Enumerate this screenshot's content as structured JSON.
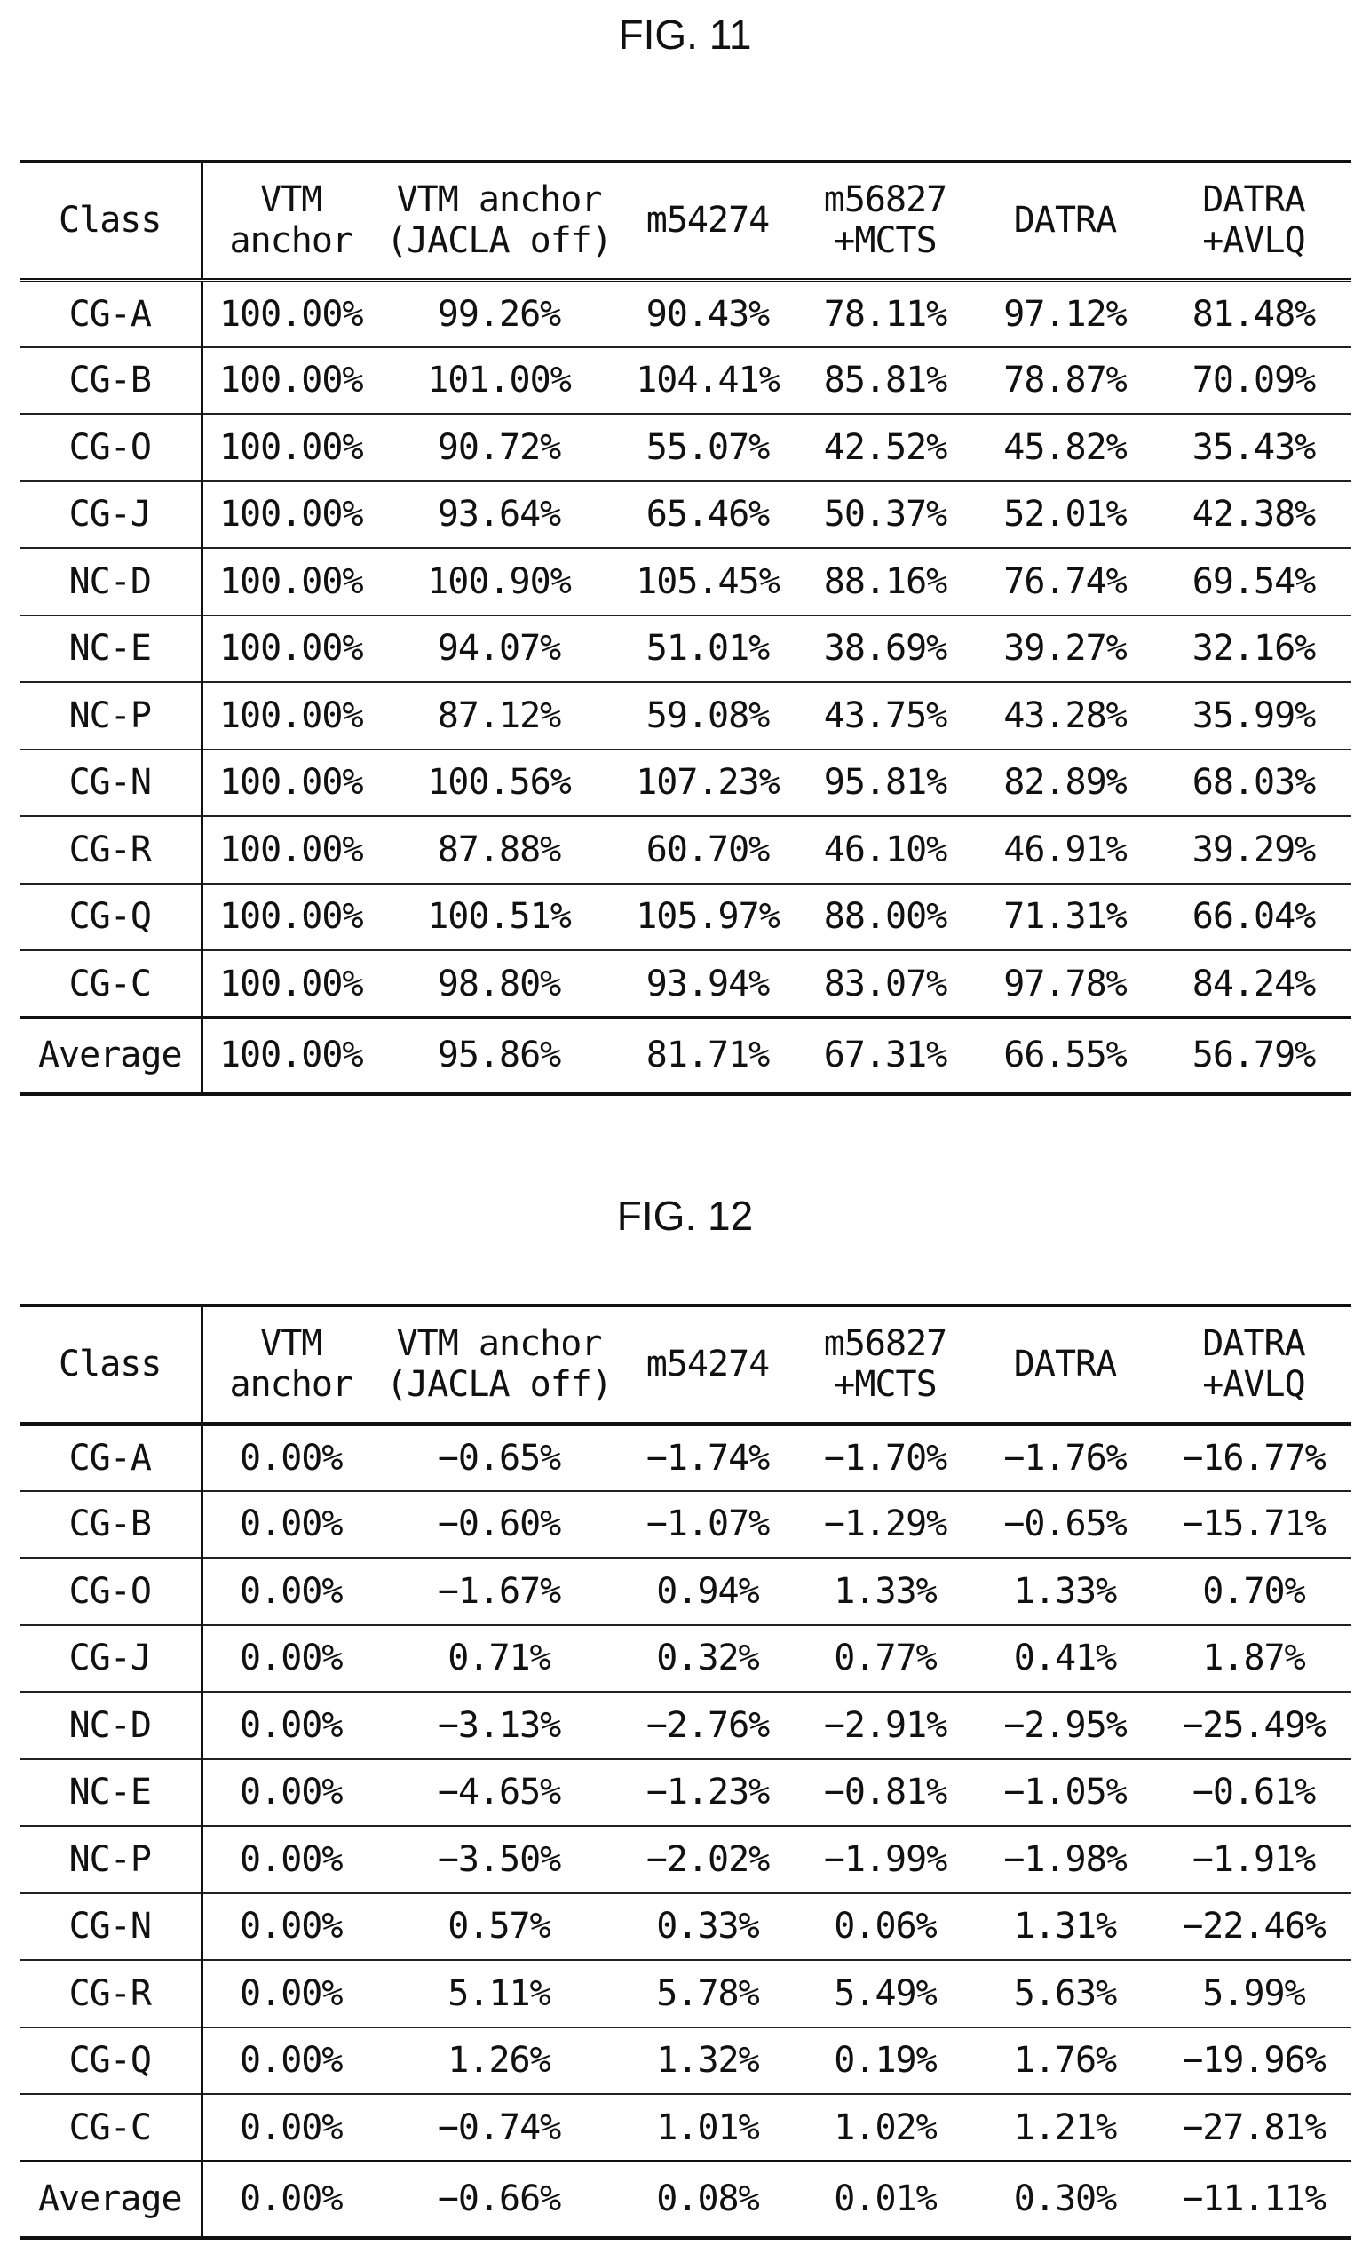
{
  "fig11": {
    "title": "FIG. 11",
    "headers": [
      [
        "Class"
      ],
      [
        "VTM",
        "anchor"
      ],
      [
        "VTM anchor",
        "(JACLA off)"
      ],
      [
        "m54274"
      ],
      [
        "m56827",
        "+MCTS"
      ],
      [
        "DATRA"
      ],
      [
        "DATRA",
        "+AVLQ"
      ]
    ],
    "rows": [
      [
        "CG-A",
        "100.00%",
        "99.26%",
        "90.43%",
        "78.11%",
        "97.12%",
        "81.48%"
      ],
      [
        "CG-B",
        "100.00%",
        "101.00%",
        "104.41%",
        "85.81%",
        "78.87%",
        "70.09%"
      ],
      [
        "CG-O",
        "100.00%",
        "90.72%",
        "55.07%",
        "42.52%",
        "45.82%",
        "35.43%"
      ],
      [
        "CG-J",
        "100.00%",
        "93.64%",
        "65.46%",
        "50.37%",
        "52.01%",
        "42.38%"
      ],
      [
        "NC-D",
        "100.00%",
        "100.90%",
        "105.45%",
        "88.16%",
        "76.74%",
        "69.54%"
      ],
      [
        "NC-E",
        "100.00%",
        "94.07%",
        "51.01%",
        "38.69%",
        "39.27%",
        "32.16%"
      ],
      [
        "NC-P",
        "100.00%",
        "87.12%",
        "59.08%",
        "43.75%",
        "43.28%",
        "35.99%"
      ],
      [
        "CG-N",
        "100.00%",
        "100.56%",
        "107.23%",
        "95.81%",
        "82.89%",
        "68.03%"
      ],
      [
        "CG-R",
        "100.00%",
        "87.88%",
        "60.70%",
        "46.10%",
        "46.91%",
        "39.29%"
      ],
      [
        "CG-Q",
        "100.00%",
        "100.51%",
        "105.97%",
        "88.00%",
        "71.31%",
        "66.04%"
      ],
      [
        "CG-C",
        "100.00%",
        "98.80%",
        "93.94%",
        "83.07%",
        "97.78%",
        "84.24%"
      ]
    ],
    "average": [
      "Average",
      "100.00%",
      "95.86%",
      "81.71%",
      "67.31%",
      "66.55%",
      "56.79%"
    ]
  },
  "fig12": {
    "title": "FIG. 12",
    "headers": [
      [
        "Class"
      ],
      [
        "VTM",
        "anchor"
      ],
      [
        "VTM anchor",
        "(JACLA off)"
      ],
      [
        "m54274"
      ],
      [
        "m56827",
        "+MCTS"
      ],
      [
        "DATRA"
      ],
      [
        "DATRA",
        "+AVLQ"
      ]
    ],
    "rows": [
      [
        "CG-A",
        "0.00%",
        "−0.65%",
        "−1.74%",
        "−1.70%",
        "−1.76%",
        "−16.77%"
      ],
      [
        "CG-B",
        "0.00%",
        "−0.60%",
        "−1.07%",
        "−1.29%",
        "−0.65%",
        "−15.71%"
      ],
      [
        "CG-O",
        "0.00%",
        "−1.67%",
        "0.94%",
        "1.33%",
        "1.33%",
        "0.70%"
      ],
      [
        "CG-J",
        "0.00%",
        "0.71%",
        "0.32%",
        "0.77%",
        "0.41%",
        "1.87%"
      ],
      [
        "NC-D",
        "0.00%",
        "−3.13%",
        "−2.76%",
        "−2.91%",
        "−2.95%",
        "−25.49%"
      ],
      [
        "NC-E",
        "0.00%",
        "−4.65%",
        "−1.23%",
        "−0.81%",
        "−1.05%",
        "−0.61%"
      ],
      [
        "NC-P",
        "0.00%",
        "−3.50%",
        "−2.02%",
        "−1.99%",
        "−1.98%",
        "−1.91%"
      ],
      [
        "CG-N",
        "0.00%",
        "0.57%",
        "0.33%",
        "0.06%",
        "1.31%",
        "−22.46%"
      ],
      [
        "CG-R",
        "0.00%",
        "5.11%",
        "5.78%",
        "5.49%",
        "5.63%",
        "5.99%"
      ],
      [
        "CG-Q",
        "0.00%",
        "1.26%",
        "1.32%",
        "0.19%",
        "1.76%",
        "−19.96%"
      ],
      [
        "CG-C",
        "0.00%",
        "−0.74%",
        "1.01%",
        "1.02%",
        "1.21%",
        "−27.81%"
      ]
    ],
    "average": [
      "Average",
      "0.00%",
      "−0.66%",
      "0.08%",
      "0.01%",
      "0.30%",
      "−11.11%"
    ]
  }
}
